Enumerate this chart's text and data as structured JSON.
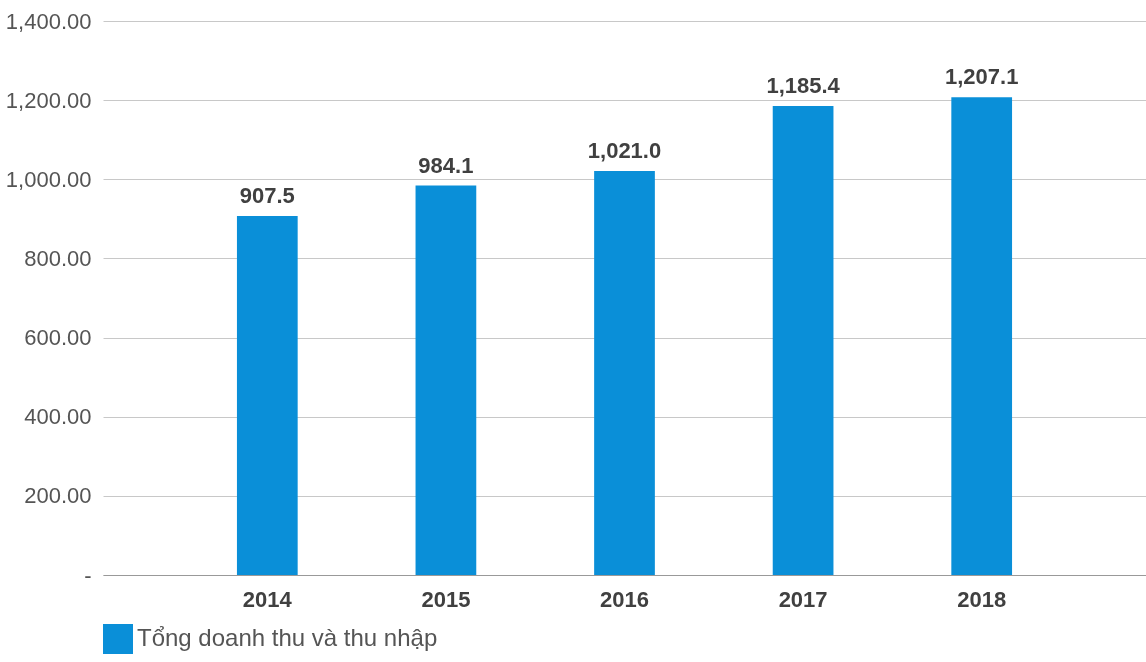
{
  "chart_data": {
    "type": "bar",
    "categories": [
      "2014",
      "2015",
      "2016",
      "2017",
      "2018"
    ],
    "series": [
      {
        "name": "Tổng doanh thu và thu nhập",
        "color": "#0a8fd8",
        "values": [
          907.5,
          984.1,
          1021.0,
          1185.4,
          1207.1
        ]
      }
    ],
    "value_labels": [
      "907.5",
      "984.1",
      "1,021.0",
      "1,185.4",
      "1,207.1"
    ],
    "ylim": [
      0,
      1400
    ],
    "yticks": [
      {
        "value": 0,
        "label": "-"
      },
      {
        "value": 200,
        "label": "200.00"
      },
      {
        "value": 400,
        "label": "400.00"
      },
      {
        "value": 600,
        "label": "600.00"
      },
      {
        "value": 800,
        "label": "800.00"
      },
      {
        "value": 1000,
        "label": "1,000.00"
      },
      {
        "value": 1200,
        "label": "1,200.00"
      },
      {
        "value": 1400,
        "label": "1,400.00"
      }
    ],
    "grid": "y",
    "legend": "bottom left"
  }
}
